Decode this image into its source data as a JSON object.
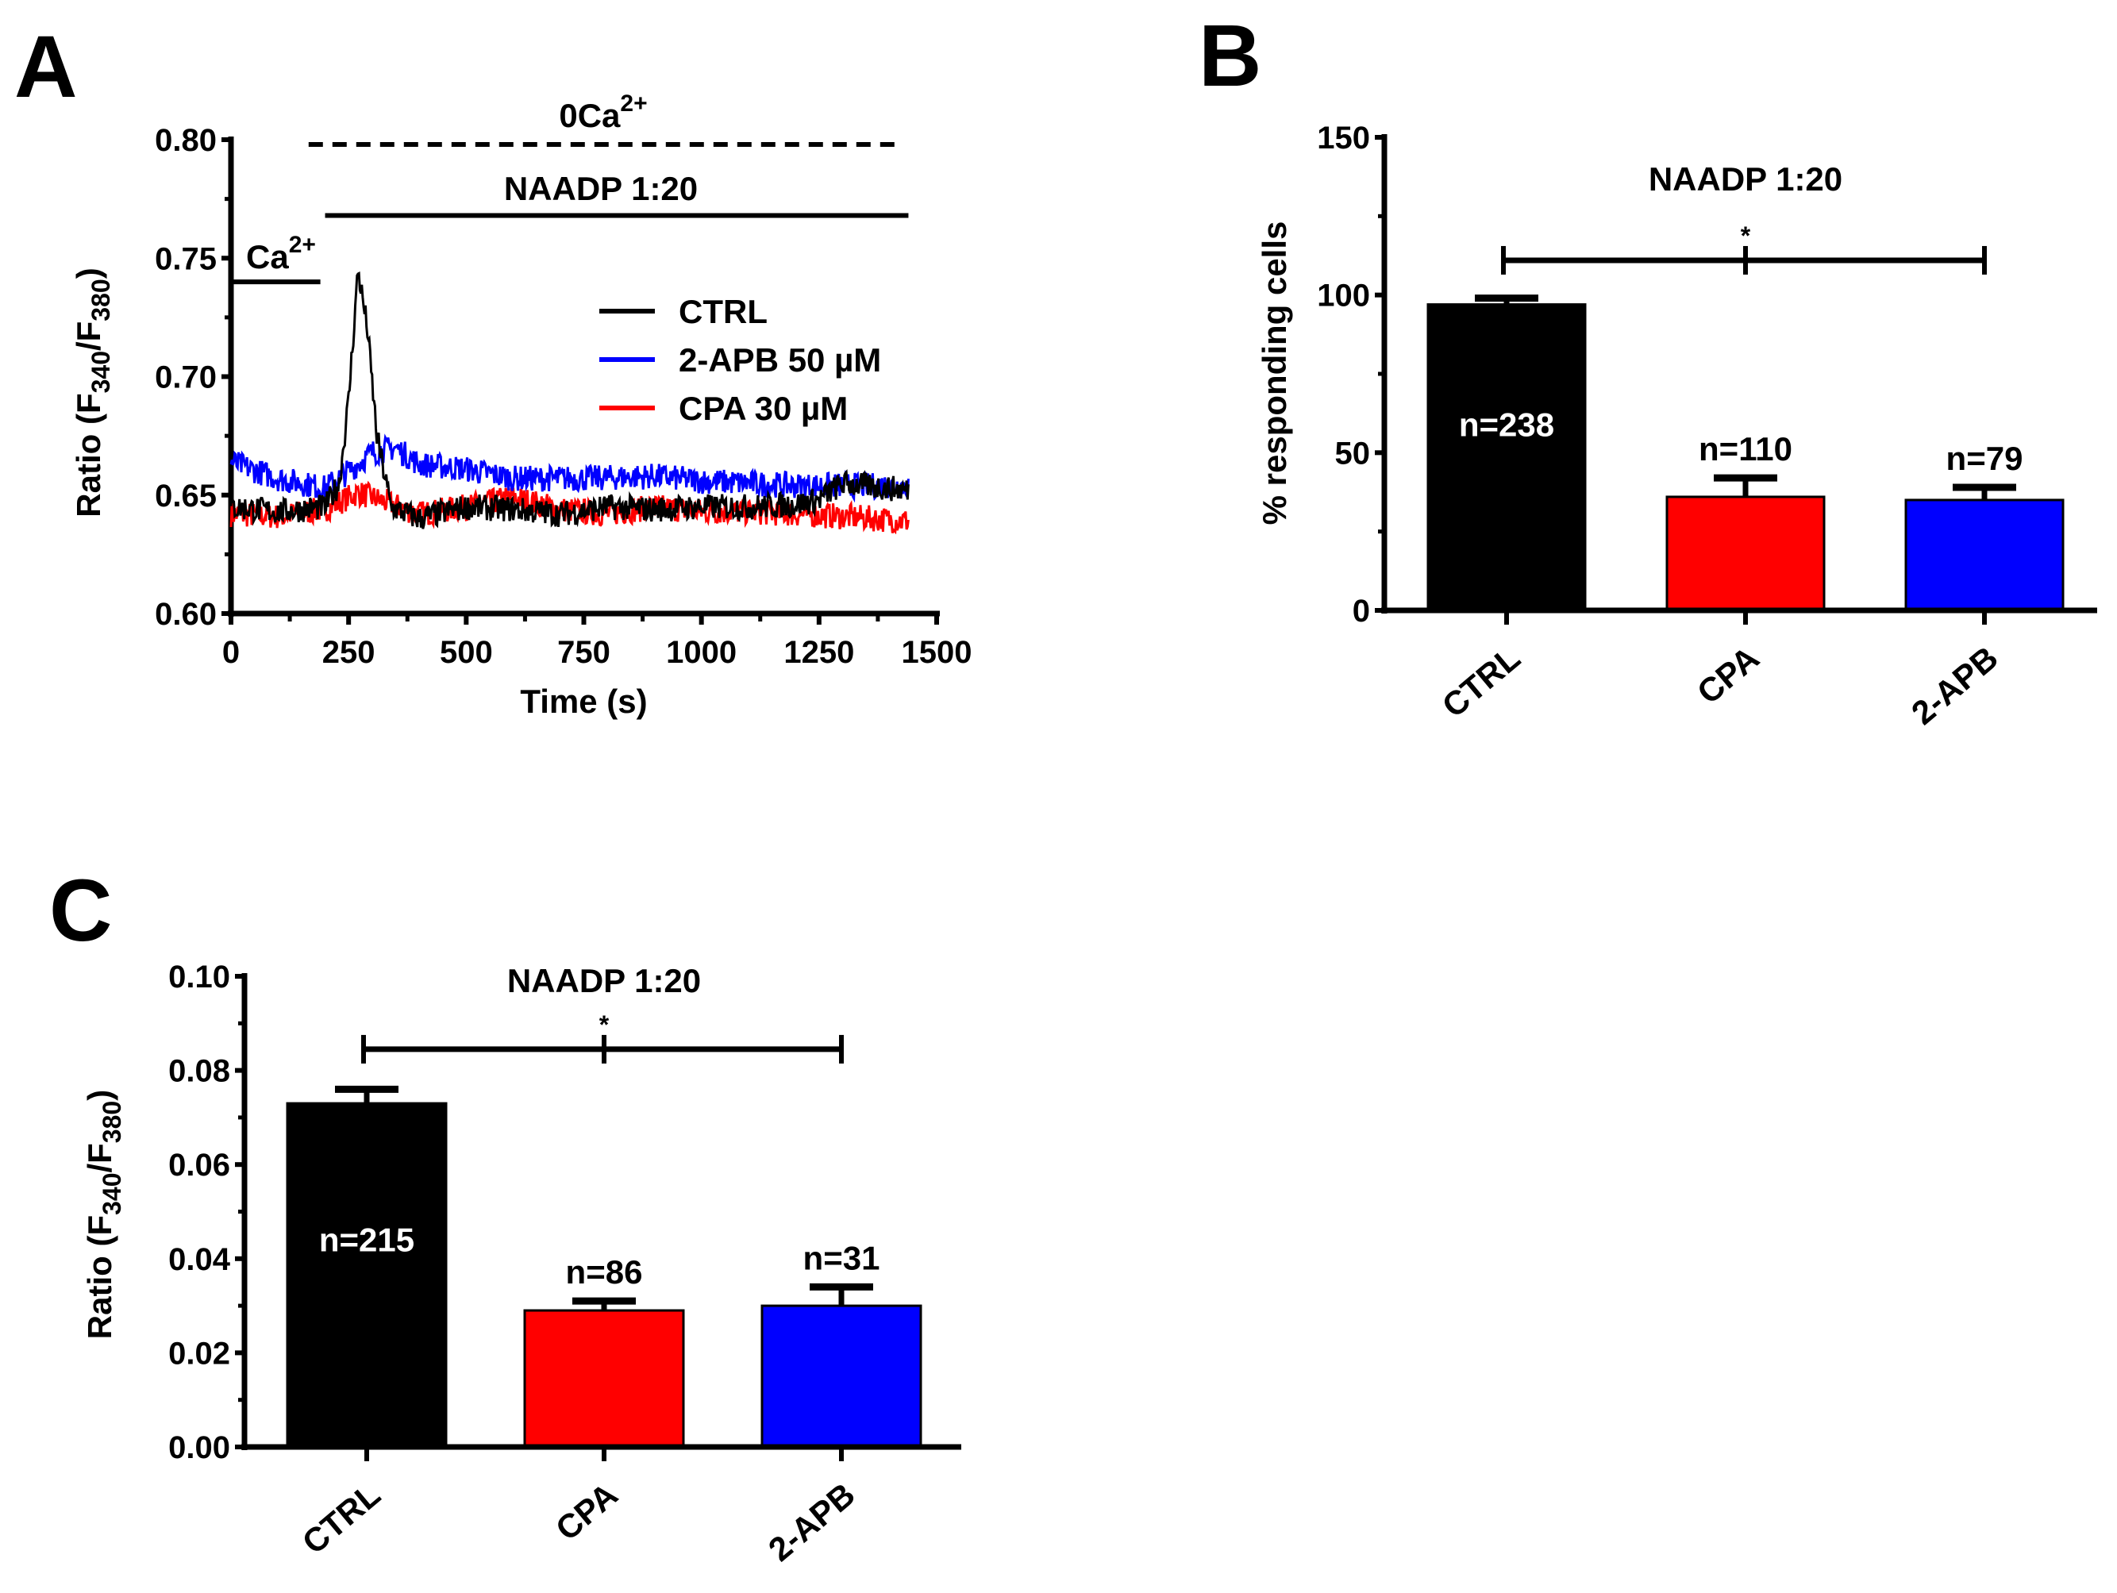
{
  "panel_labels": [
    "A",
    "B",
    "C"
  ],
  "chart_data": [
    {
      "type": "line",
      "panel": "A",
      "xlabel": "Time (s)",
      "ylabel": "Ratio (F340/F380)",
      "ylabel_parts": {
        "pre": "Ratio (F",
        "sub1": "340",
        "mid": "/F",
        "sub2": "380",
        "post": ")"
      },
      "xlim": [
        0,
        1500
      ],
      "ylim": [
        0.6,
        0.8
      ],
      "xticks": [
        "0",
        "250",
        "500",
        "750",
        "1000",
        "1250",
        "1500"
      ],
      "xtick_values": [
        0,
        250,
        500,
        750,
        1000,
        1250,
        1500
      ],
      "yticks": [
        "0.60",
        "0.65",
        "0.70",
        "0.75",
        "0.80"
      ],
      "ytick_values": [
        0.6,
        0.65,
        0.7,
        0.75,
        0.8
      ],
      "annotations": {
        "zero_ca": {
          "base": "0Ca",
          "sup": "2+",
          "x_range": [
            165,
            1430
          ],
          "y": 0.798,
          "style": "dashed"
        },
        "naadp": {
          "text": "NAADP 1:20",
          "x_range": [
            200,
            1440
          ],
          "y": 0.768
        },
        "ca": {
          "base": "Ca",
          "sup": "2+",
          "x_range": [
            0,
            190
          ],
          "y": 0.74
        }
      },
      "legend_position": "right-middle",
      "series": [
        {
          "name": "CTRL",
          "color": "#000000",
          "x": [
            0,
            100,
            200,
            230,
            250,
            270,
            290,
            310,
            340,
            400,
            500,
            600,
            700,
            800,
            900,
            1000,
            1100,
            1200,
            1250,
            1300,
            1440
          ],
          "y": [
            0.645,
            0.643,
            0.645,
            0.655,
            0.69,
            0.745,
            0.72,
            0.675,
            0.645,
            0.64,
            0.645,
            0.644,
            0.642,
            0.645,
            0.644,
            0.645,
            0.645,
            0.646,
            0.648,
            0.655,
            0.652
          ]
        },
        {
          "name": "2-APB 50 µM",
          "color": "#0000ff",
          "x": [
            0,
            100,
            200,
            250,
            300,
            350,
            400,
            500,
            600,
            750,
            900,
            1000,
            1100,
            1200,
            1250,
            1440
          ],
          "y": [
            0.664,
            0.657,
            0.653,
            0.66,
            0.668,
            0.67,
            0.663,
            0.661,
            0.657,
            0.657,
            0.658,
            0.656,
            0.655,
            0.654,
            0.654,
            0.654
          ]
        },
        {
          "name": "CPA 30 µM",
          "color": "#ff0000",
          "x": [
            0,
            100,
            200,
            270,
            300,
            400,
            500,
            600,
            700,
            800,
            900,
            1000,
            1100,
            1200,
            1300,
            1440
          ],
          "y": [
            0.642,
            0.641,
            0.644,
            0.651,
            0.649,
            0.642,
            0.645,
            0.649,
            0.644,
            0.642,
            0.645,
            0.643,
            0.643,
            0.642,
            0.641,
            0.639
          ]
        }
      ]
    },
    {
      "type": "bar",
      "panel": "B",
      "title": "NAADP 1:20",
      "ylabel": "% responding cells",
      "ylim": [
        0,
        150
      ],
      "yticks": [
        "0",
        "50",
        "100",
        "150"
      ],
      "ytick_values": [
        0,
        50,
        100,
        150
      ],
      "categories": [
        "CTRL",
        "CPA",
        "2-APB"
      ],
      "values": [
        97,
        36,
        35
      ],
      "errors": [
        2,
        6,
        4
      ],
      "colors": [
        "#000000",
        "#ff0000",
        "#0000ff"
      ],
      "n_labels": [
        "n=238",
        "n=110",
        "n=79"
      ],
      "significance": {
        "text": "*",
        "y": 111
      }
    },
    {
      "type": "bar",
      "panel": "C",
      "title": "NAADP 1:20",
      "ylabel_parts": {
        "pre": "Ratio (F",
        "sub1": "340",
        "mid": "/F",
        "sub2": "380",
        "post": ")"
      },
      "ylim": [
        0,
        0.1
      ],
      "yticks": [
        "0.00",
        "0.02",
        "0.04",
        "0.06",
        "0.08",
        "0.10"
      ],
      "ytick_values": [
        0,
        0.02,
        0.04,
        0.06,
        0.08,
        0.1
      ],
      "categories": [
        "CTRL",
        "CPA",
        "2-APB"
      ],
      "values": [
        0.073,
        0.029,
        0.03
      ],
      "errors": [
        0.003,
        0.002,
        0.004
      ],
      "colors": [
        "#000000",
        "#ff0000",
        "#0000ff"
      ],
      "n_labels": [
        "n=215",
        "n=86",
        "n=31"
      ],
      "significance": {
        "text": "*",
        "y": 0.0845
      }
    }
  ]
}
